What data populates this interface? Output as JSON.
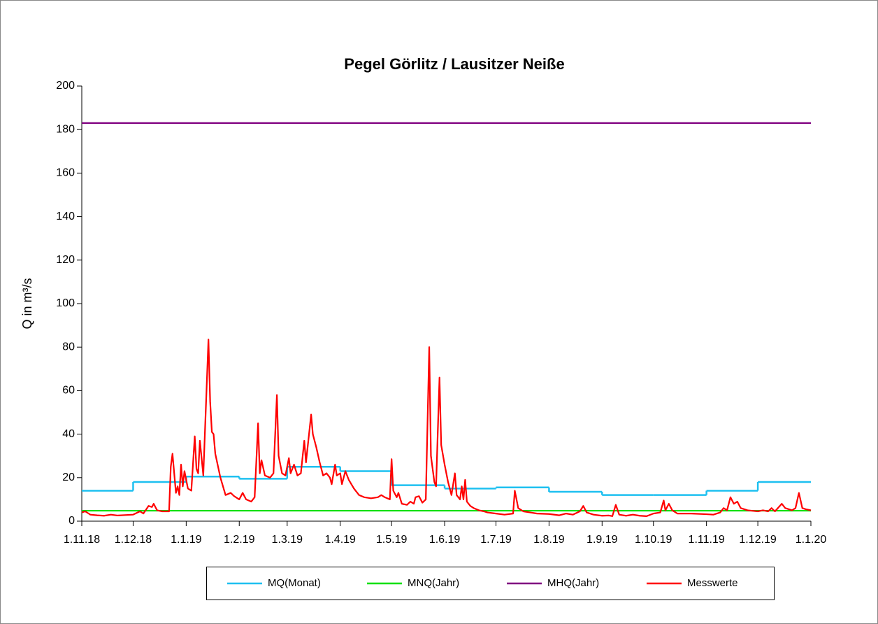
{
  "chart_data": {
    "type": "line",
    "title": "Pegel Görlitz / Lausitzer Neiße",
    "y_label": "Q in m³/s",
    "xlim": [
      "1.11.18",
      "1.1.20"
    ],
    "xticks": [
      "1.11.18",
      "1.12.18",
      "1.1.19",
      "1.2.19",
      "1.3.19",
      "1.4.19",
      "1.5.19",
      "1.6.19",
      "1.7.19",
      "1.8.19",
      "1.9.19",
      "1.10.19",
      "1.11.19",
      "1.12.19",
      "1.1.20"
    ],
    "ylim": [
      0,
      200
    ],
    "yticks": [
      0,
      20,
      40,
      60,
      80,
      100,
      120,
      140,
      160,
      180,
      200
    ],
    "grid": false,
    "legend": "bottom",
    "series": [
      {
        "name": "MQ(Monat)",
        "color": "#1ec0f0",
        "step": true,
        "x": [
          "1.11.18",
          "1.12.18",
          "1.1.19",
          "1.2.19",
          "1.3.19",
          "1.4.19",
          "1.5.19",
          "1.6.19",
          "1.7.19",
          "1.8.19",
          "1.9.19",
          "1.10.19",
          "1.11.19",
          "1.12.19"
        ],
        "values": [
          14,
          18,
          20.5,
          19.5,
          25,
          23,
          16.5,
          15,
          15.5,
          13.5,
          12,
          12,
          14,
          18
        ]
      },
      {
        "name": "MNQ(Jahr)",
        "color": "#00e000",
        "x": [
          "1.11.18",
          "1.1.20"
        ],
        "values": [
          4.8,
          4.8
        ]
      },
      {
        "name": "MHQ(Jahr)",
        "color": "#800080",
        "x": [
          "1.11.18",
          "1.1.20"
        ],
        "values": [
          183,
          183
        ]
      },
      {
        "name": "Messwerte",
        "color": "#ff0000",
        "x": [
          "1.11.18",
          "3.11.18",
          "6.11.18",
          "10.11.18",
          "14.11.18",
          "18.11.18",
          "22.11.18",
          "26.11.18",
          "1.12.18",
          "5.12.18",
          "7.12.18",
          "10.12.18",
          "12.12.18",
          "13.12.18",
          "15.12.18",
          "18.12.18",
          "22.12.18",
          "23.12.18",
          "24.12.18",
          "26.12.18",
          "27.12.18",
          "28.12.18",
          "29.12.18",
          "30.12.18",
          "31.12.18",
          "2.1.19",
          "4.1.19",
          "6.1.19",
          "7.1.19",
          "8.1.19",
          "9.1.19",
          "11.1.19",
          "14.1.19",
          "15.1.19",
          "16.1.19",
          "17.1.19",
          "18.1.19",
          "21.1.19",
          "24.1.19",
          "27.1.19",
          "29.1.19",
          "1.2.19",
          "3.2.19",
          "5.2.19",
          "8.2.19",
          "10.2.19",
          "12.2.19",
          "13.2.19",
          "14.2.19",
          "16.2.19",
          "19.2.19",
          "21.2.19",
          "23.2.19",
          "24.2.19",
          "26.2.19",
          "28.2.19",
          "2.3.19",
          "3.3.19",
          "5.3.19",
          "7.3.19",
          "9.3.19",
          "11.3.19",
          "12.3.19",
          "15.3.19",
          "16.3.19",
          "18.3.19",
          "20.3.19",
          "22.3.19",
          "24.3.19",
          "26.3.19",
          "27.3.19",
          "29.3.19",
          "30.3.19",
          "1.4.19",
          "2.4.19",
          "4.4.19",
          "6.4.19",
          "9.4.19",
          "12.4.19",
          "15.4.19",
          "19.4.19",
          "23.4.19",
          "25.4.19",
          "27.4.19",
          "30.4.19",
          "1.5.19",
          "2.5.19",
          "4.5.19",
          "5.5.19",
          "7.5.19",
          "10.5.19",
          "12.5.19",
          "14.5.19",
          "15.5.19",
          "17.5.19",
          "19.5.19",
          "21.5.19",
          "23.5.19",
          "24.5.19",
          "26.5.19",
          "27.5.19",
          "29.5.19",
          "30.5.19",
          "1.6.19",
          "3.6.19",
          "5.6.19",
          "7.6.19",
          "8.6.19",
          "10.6.19",
          "11.6.19",
          "12.6.19",
          "13.6.19",
          "14.6.19",
          "16.6.19",
          "18.6.19",
          "21.6.19",
          "24.6.19",
          "26.6.19",
          "1.7.19",
          "6.7.19",
          "11.7.19",
          "12.7.19",
          "14.7.19",
          "17.7.19",
          "21.7.19",
          "25.7.19",
          "1.8.19",
          "7.8.19",
          "11.8.19",
          "15.8.19",
          "19.8.19",
          "21.8.19",
          "23.8.19",
          "27.8.19",
          "1.9.19",
          "5.9.19",
          "7.9.19",
          "9.9.19",
          "11.9.19",
          "15.9.19",
          "19.9.19",
          "23.9.19",
          "27.9.19",
          "1.10.19",
          "5.10.19",
          "7.10.19",
          "8.10.19",
          "10.10.19",
          "12.10.19",
          "15.10.19",
          "23.10.19",
          "1.11.19",
          "5.11.19",
          "9.11.19",
          "11.11.19",
          "13.11.19",
          "15.11.19",
          "17.11.19",
          "19.11.19",
          "21.11.19",
          "25.11.19",
          "1.12.19",
          "4.12.19",
          "7.12.19",
          "9.12.19",
          "11.12.19",
          "15.12.19",
          "17.12.19",
          "21.12.19",
          "23.12.19",
          "25.12.19",
          "27.12.19",
          "29.12.19",
          "1.1.20"
        ],
        "values": [
          4,
          4.5,
          3,
          2.7,
          2.5,
          3,
          2.6,
          2.8,
          3,
          4.5,
          3.5,
          7,
          6.5,
          8,
          5,
          4.5,
          4.5,
          25,
          31,
          13,
          16,
          12,
          26,
          16,
          23,
          15,
          14,
          39,
          24,
          22,
          37,
          21,
          83.5,
          55,
          41,
          40,
          31,
          20,
          12,
          13,
          11.5,
          10,
          13,
          10,
          9,
          11,
          45,
          22,
          28,
          21,
          20,
          22,
          58,
          30,
          22,
          21,
          29,
          22,
          26,
          21,
          22,
          37,
          27,
          49,
          40,
          34,
          27,
          21,
          22,
          20,
          17,
          26,
          21,
          22,
          17,
          23,
          19,
          15,
          12,
          11,
          10.5,
          11,
          12,
          11,
          10,
          28.5,
          14,
          11,
          13,
          8,
          7.5,
          9,
          8,
          11,
          11.5,
          8.5,
          10,
          80,
          30,
          18,
          16,
          66,
          35,
          26,
          18,
          12,
          22,
          12,
          10,
          16,
          10,
          19,
          9,
          7,
          6,
          5,
          4.5,
          4,
          3.5,
          3,
          3.5,
          14,
          6,
          4.5,
          4,
          3.5,
          3.3,
          2.7,
          3.5,
          3,
          4.5,
          7,
          4,
          3,
          2.5,
          2.6,
          2.3,
          7.5,
          3,
          2.5,
          3,
          2.5,
          2.3,
          3.5,
          4,
          9.5,
          5,
          8,
          5,
          3.5,
          3.5,
          3.2,
          3,
          4,
          6,
          5,
          11,
          8,
          9,
          6,
          5,
          4.5,
          5,
          4.5,
          6,
          4.5,
          8,
          6,
          5,
          6,
          13,
          6,
          5.5,
          5
        ]
      }
    ]
  }
}
